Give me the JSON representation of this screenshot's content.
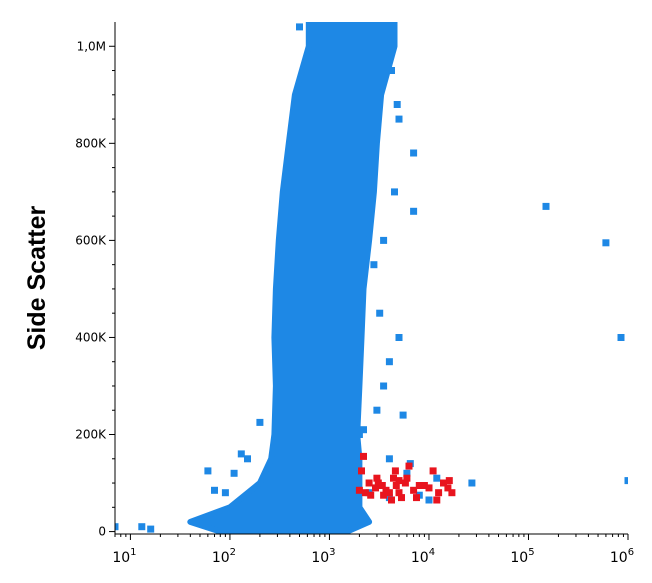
{
  "chart_data": {
    "type": "scatter",
    "title": "",
    "xlabel": "",
    "ylabel": "Side Scatter",
    "x_scale": "log",
    "xlim": [
      7,
      1000000
    ],
    "ylim": [
      -5000,
      1050000
    ],
    "x_ticks": [
      {
        "base": "10",
        "exp": "1",
        "value": 10
      },
      {
        "base": "10",
        "exp": "2",
        "value": 100
      },
      {
        "base": "10",
        "exp": "3",
        "value": 1000
      },
      {
        "base": "10",
        "exp": "4",
        "value": 10000
      },
      {
        "base": "10",
        "exp": "5",
        "value": 100000
      },
      {
        "base": "10",
        "exp": "6",
        "value": 1000000
      }
    ],
    "y_ticks": [
      {
        "label": "0",
        "value": 0
      },
      {
        "label": "200K",
        "value": 200000
      },
      {
        "label": "400K",
        "value": 400000
      },
      {
        "label": "600K",
        "value": 600000
      },
      {
        "label": "800K",
        "value": 800000
      },
      {
        "label": "1,0M",
        "value": 1000000
      }
    ],
    "grid": false,
    "series": [
      {
        "color": "#1e88e5",
        "density_band": [
          {
            "y": 0,
            "x_low": 80,
            "x_high": 1500
          },
          {
            "y": 20000,
            "x_low": 40,
            "x_high": 2500
          },
          {
            "y": 50000,
            "x_low": 100,
            "x_high": 2000
          },
          {
            "y": 100000,
            "x_low": 200,
            "x_high": 2000
          },
          {
            "y": 150000,
            "x_low": 260,
            "x_high": 2000
          },
          {
            "y": 200000,
            "x_low": 280,
            "x_high": 1900
          },
          {
            "y": 300000,
            "x_low": 290,
            "x_high": 2000
          },
          {
            "y": 400000,
            "x_low": 280,
            "x_high": 2100
          },
          {
            "y": 500000,
            "x_low": 290,
            "x_high": 2200
          },
          {
            "y": 600000,
            "x_low": 310,
            "x_high": 2500
          },
          {
            "y": 700000,
            "x_low": 340,
            "x_high": 2800
          },
          {
            "y": 800000,
            "x_low": 390,
            "x_high": 3000
          },
          {
            "y": 900000,
            "x_low": 450,
            "x_high": 3300
          },
          {
            "y": 1000000,
            "x_low": 620,
            "x_high": 4500
          }
        ],
        "points": [
          [
            150000,
            670000
          ],
          [
            600000,
            595000
          ],
          [
            850000,
            400000
          ],
          [
            1000000,
            105000
          ],
          [
            27000,
            100000
          ],
          [
            7000,
            780000
          ],
          [
            7000,
            660000
          ],
          [
            5000,
            400000
          ],
          [
            5500,
            240000
          ],
          [
            200,
            225000
          ],
          [
            60,
            125000
          ],
          [
            110,
            120000
          ],
          [
            7,
            10000
          ],
          [
            13,
            10000
          ],
          [
            16,
            5000
          ],
          [
            2000,
            200000
          ],
          [
            2200,
            210000
          ],
          [
            3000,
            250000
          ],
          [
            3500,
            300000
          ],
          [
            4000,
            350000
          ],
          [
            3200,
            450000
          ],
          [
            2800,
            550000
          ],
          [
            3500,
            600000
          ],
          [
            4500,
            700000
          ],
          [
            5000,
            850000
          ],
          [
            2500,
            900000
          ],
          [
            2000,
            1000000
          ],
          [
            2300,
            1040000
          ],
          [
            150,
            150000
          ],
          [
            130,
            160000
          ],
          [
            70,
            85000
          ],
          [
            90,
            80000
          ],
          [
            6000,
            120000
          ],
          [
            8000,
            75000
          ],
          [
            10000,
            65000
          ],
          [
            12000,
            110000
          ],
          [
            4000,
            70000
          ],
          [
            2500,
            80000
          ],
          [
            1000,
            1040000
          ],
          [
            500,
            1040000
          ],
          [
            3000,
            1040000
          ],
          [
            3800,
            1000000
          ],
          [
            4200,
            950000
          ],
          [
            4800,
            880000
          ],
          [
            1800,
            980000
          ],
          [
            2600,
            720000
          ],
          [
            1700,
            600000
          ],
          [
            1800,
            350000
          ],
          [
            4000,
            150000
          ],
          [
            6500,
            140000
          ]
        ]
      },
      {
        "color": "#e8141e",
        "points": [
          [
            2000,
            85000
          ],
          [
            2300,
            80000
          ],
          [
            2600,
            75000
          ],
          [
            2900,
            90000
          ],
          [
            3100,
            100000
          ],
          [
            3400,
            95000
          ],
          [
            3700,
            85000
          ],
          [
            4000,
            80000
          ],
          [
            4400,
            110000
          ],
          [
            4700,
            95000
          ],
          [
            5000,
            80000
          ],
          [
            5300,
            70000
          ],
          [
            5800,
            100000
          ],
          [
            6300,
            135000
          ],
          [
            7000,
            85000
          ],
          [
            8000,
            95000
          ],
          [
            9000,
            95000
          ],
          [
            10000,
            90000
          ],
          [
            11000,
            125000
          ],
          [
            12500,
            80000
          ],
          [
            14000,
            100000
          ],
          [
            15500,
            90000
          ],
          [
            17000,
            80000
          ],
          [
            2200,
            155000
          ],
          [
            2100,
            125000
          ],
          [
            2500,
            100000
          ],
          [
            3000,
            110000
          ],
          [
            3500,
            75000
          ],
          [
            4200,
            65000
          ],
          [
            5000,
            105000
          ],
          [
            6000,
            110000
          ],
          [
            7500,
            70000
          ],
          [
            16000,
            105000
          ],
          [
            12000,
            65000
          ],
          [
            4600,
            125000
          ]
        ]
      }
    ]
  }
}
